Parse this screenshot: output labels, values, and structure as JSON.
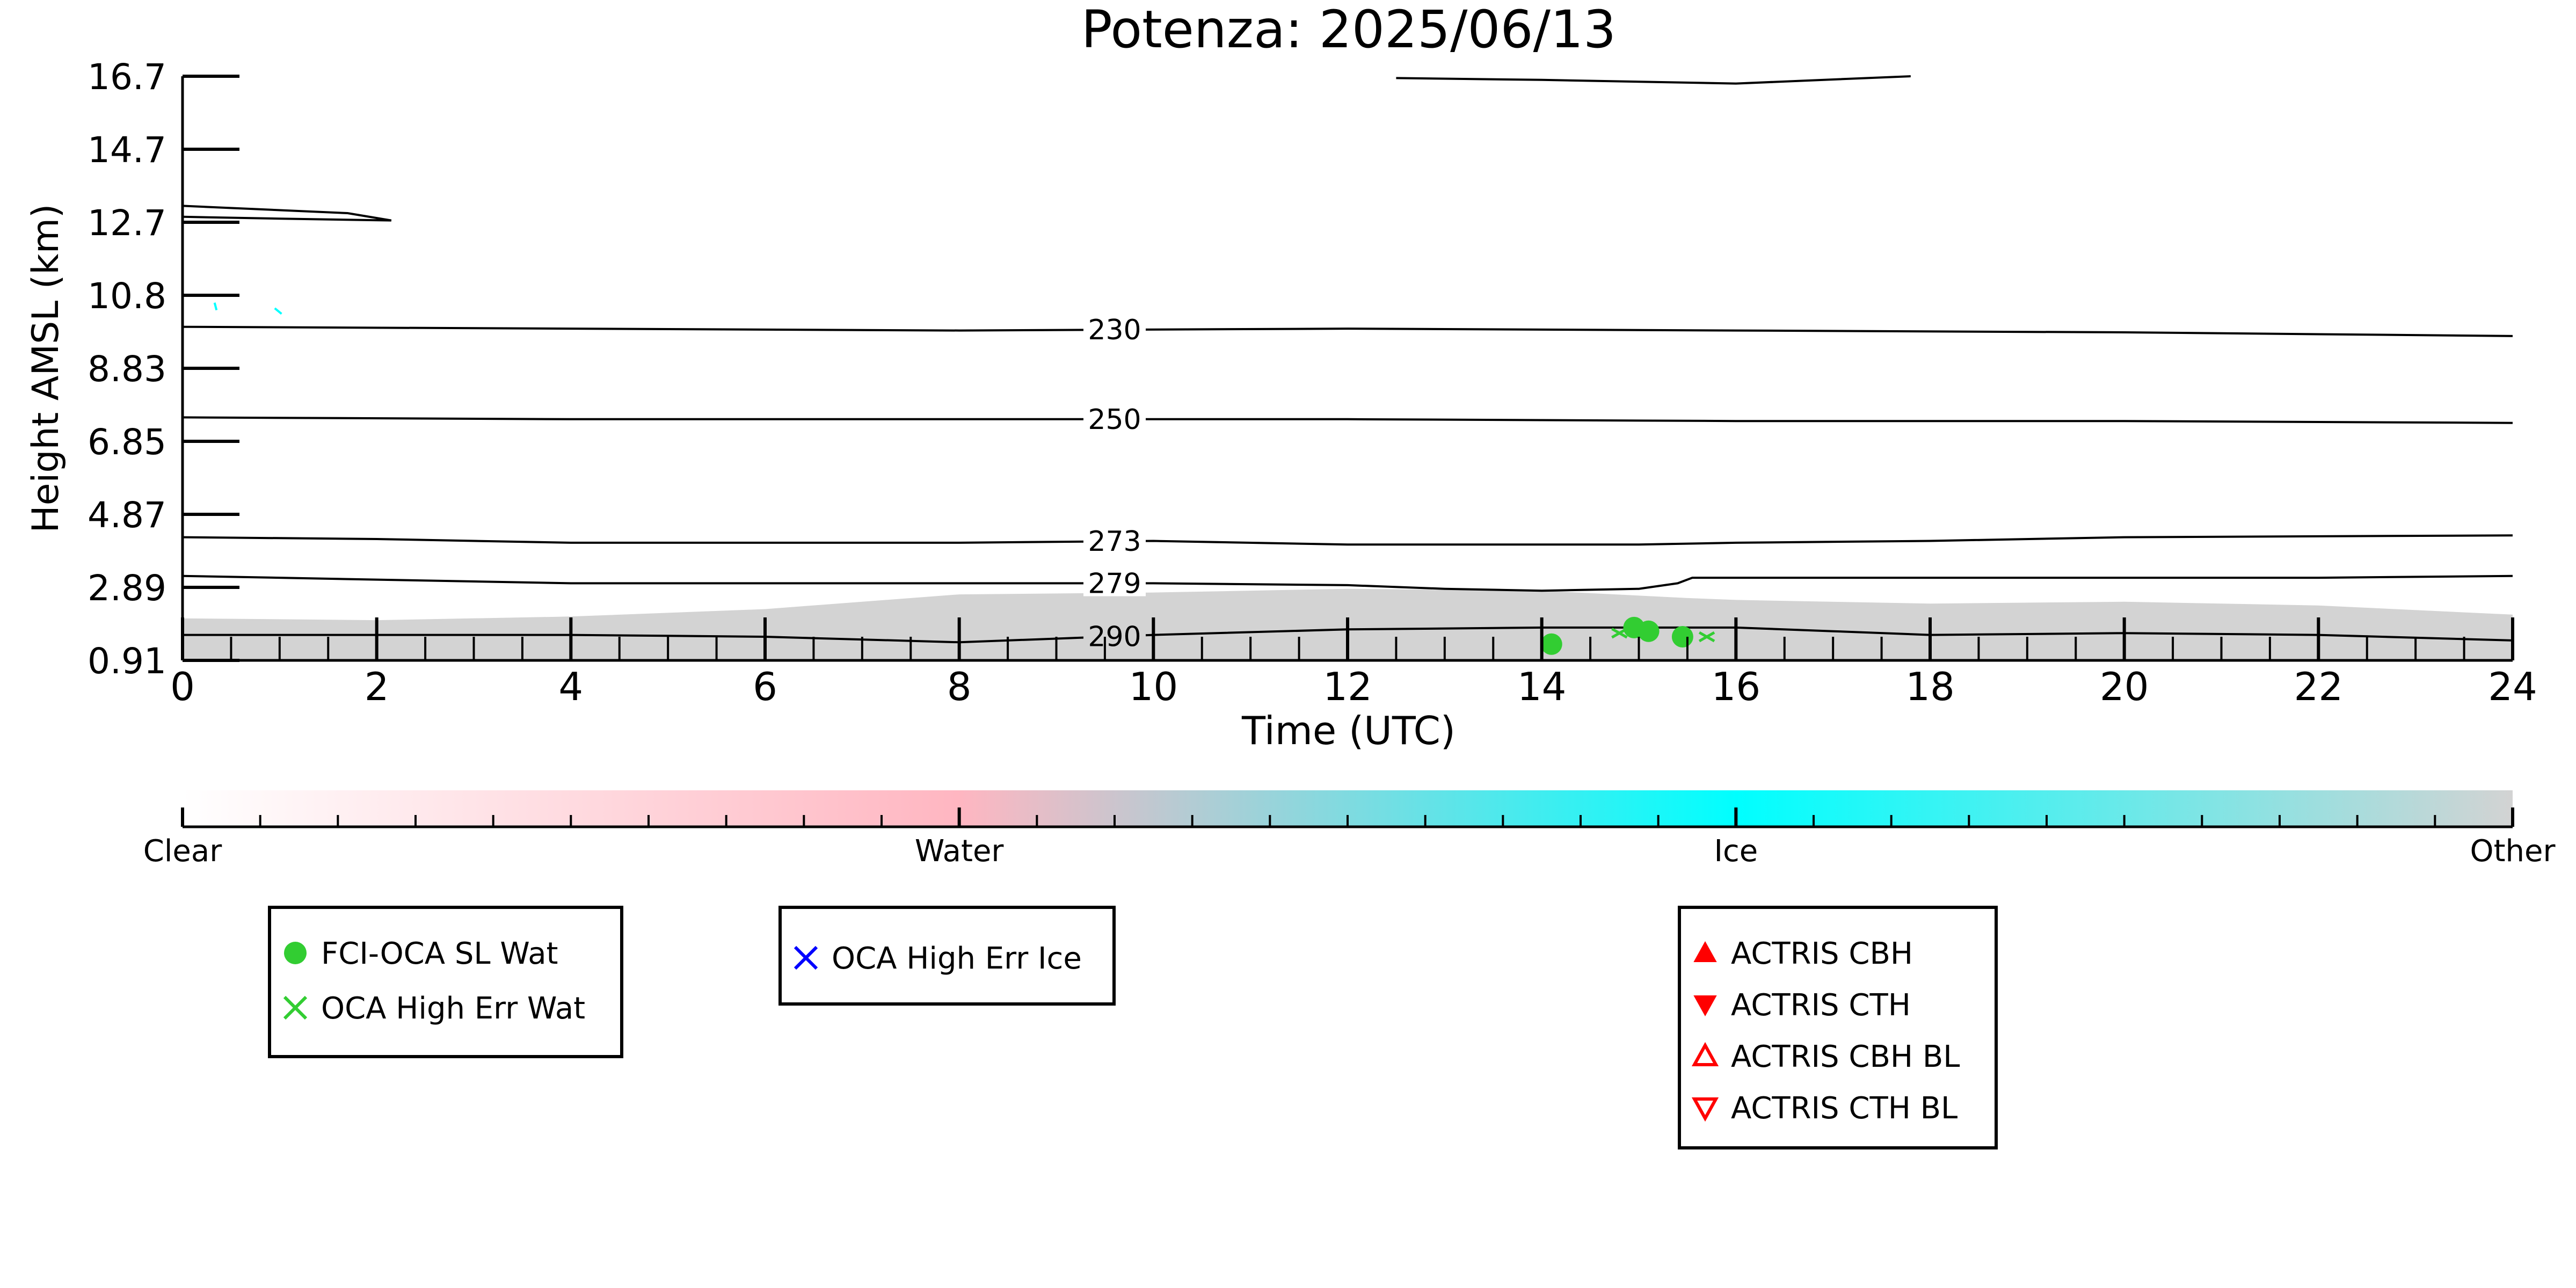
{
  "chart_data": {
    "type": "heatmap",
    "title": "Potenza: 2025/06/13",
    "xlabel": "Time (UTC)",
    "ylabel": "Height AMSL (km)",
    "xlim": [
      0,
      24
    ],
    "ylim": [
      0.91,
      16.7
    ],
    "xticks": [
      "0",
      "2",
      "4",
      "6",
      "8",
      "10",
      "12",
      "14",
      "16",
      "18",
      "20",
      "22",
      "24"
    ],
    "yticks": [
      "0.91",
      "2.89",
      "4.87",
      "6.85",
      "8.83",
      "10.8",
      "12.7",
      "14.7",
      "16.7"
    ],
    "ytick_values": [
      0.91,
      2.89,
      4.87,
      6.85,
      8.83,
      10.8,
      12.7,
      14.7,
      16.7
    ],
    "grid": false,
    "cloud_mask": {
      "class": "Other",
      "color": "#d3d3d3",
      "top_km": [
        [
          0,
          2.05
        ],
        [
          2,
          2.0
        ],
        [
          4,
          2.1
        ],
        [
          6,
          2.3
        ],
        [
          8,
          2.7
        ],
        [
          10,
          2.75
        ],
        [
          12,
          2.85
        ],
        [
          14,
          2.8
        ],
        [
          15.5,
          2.6
        ],
        [
          16,
          2.55
        ],
        [
          18,
          2.45
        ],
        [
          20,
          2.5
        ],
        [
          22,
          2.4
        ],
        [
          24,
          2.15
        ]
      ]
    },
    "ice_specks": [
      {
        "x": [
          0.33,
          0.35
        ],
        "y": [
          10.6,
          10.4
        ]
      },
      {
        "x": [
          0.95,
          1.02
        ],
        "y": [
          10.45,
          10.3
        ]
      }
    ],
    "contours": [
      {
        "label": "230",
        "label_x": 9.6,
        "points": [
          [
            0,
            9.95
          ],
          [
            4,
            9.9
          ],
          [
            8,
            9.85
          ],
          [
            12,
            9.9
          ],
          [
            16,
            9.85
          ],
          [
            20,
            9.8
          ],
          [
            24,
            9.7
          ]
        ]
      },
      {
        "label": "250",
        "label_x": 9.6,
        "points": [
          [
            0,
            7.5
          ],
          [
            4,
            7.45
          ],
          [
            8,
            7.45
          ],
          [
            12,
            7.45
          ],
          [
            16,
            7.4
          ],
          [
            20,
            7.4
          ],
          [
            24,
            7.35
          ]
        ]
      },
      {
        "label": "273",
        "label_x": 9.6,
        "points": [
          [
            0,
            4.25
          ],
          [
            2,
            4.2
          ],
          [
            4,
            4.1
          ],
          [
            6,
            4.1
          ],
          [
            8,
            4.1
          ],
          [
            10,
            4.15
          ],
          [
            12,
            4.05
          ],
          [
            15,
            4.05
          ],
          [
            16,
            4.1
          ],
          [
            18,
            4.15
          ],
          [
            20,
            4.25
          ],
          [
            24,
            4.3
          ]
        ]
      },
      {
        "label": "279",
        "label_x": 9.6,
        "points": [
          [
            0,
            3.2
          ],
          [
            2,
            3.1
          ],
          [
            4,
            3.0
          ],
          [
            6,
            3.0
          ],
          [
            8,
            3.0
          ],
          [
            10,
            3.0
          ],
          [
            12,
            2.95
          ],
          [
            13,
            2.85
          ],
          [
            14,
            2.8
          ],
          [
            15,
            2.85
          ],
          [
            15.4,
            3.0
          ],
          [
            15.55,
            3.15
          ],
          [
            16,
            3.15
          ],
          [
            18,
            3.15
          ],
          [
            20,
            3.15
          ],
          [
            22,
            3.15
          ],
          [
            24,
            3.2
          ]
        ]
      },
      {
        "label": "290",
        "label_x": 9.6,
        "points": [
          [
            0,
            1.6
          ],
          [
            2,
            1.6
          ],
          [
            4,
            1.6
          ],
          [
            6,
            1.55
          ],
          [
            8,
            1.4
          ],
          [
            10,
            1.6
          ],
          [
            12,
            1.75
          ],
          [
            14,
            1.8
          ],
          [
            16,
            1.8
          ],
          [
            17,
            1.7
          ],
          [
            18,
            1.6
          ],
          [
            20,
            1.65
          ],
          [
            22,
            1.6
          ],
          [
            24,
            1.45
          ]
        ]
      },
      {
        "label": "",
        "label_x": null,
        "points": [
          [
            12.5,
            16.65
          ],
          [
            14,
            16.6
          ],
          [
            16,
            16.5
          ],
          [
            17.8,
            16.7
          ]
        ]
      },
      {
        "label": "",
        "label_x": null,
        "points": [
          [
            0,
            13.15
          ],
          [
            1.7,
            12.95
          ],
          [
            2.15,
            12.75
          ],
          [
            1.0,
            12.8
          ],
          [
            0,
            12.85
          ]
        ]
      }
    ],
    "markers": {
      "fci_oca_sl_wat": {
        "color": "#32cd32",
        "points": [
          [
            14.1,
            1.35
          ],
          [
            14.95,
            1.8
          ],
          [
            15.1,
            1.7
          ],
          [
            15.45,
            1.55
          ]
        ]
      },
      "oca_high_err_wat": {
        "color": "#32cd32",
        "points": [
          [
            14.8,
            1.65
          ],
          [
            15.7,
            1.55
          ]
        ]
      }
    },
    "colorbar": {
      "labels": [
        "Clear",
        "Water",
        "Ice",
        "Other"
      ],
      "stops": [
        {
          "at": 0.0,
          "color": "#ffffff"
        },
        {
          "at": 0.333,
          "color": "#ffb6c1"
        },
        {
          "at": 0.667,
          "color": "#00ffff"
        },
        {
          "at": 1.0,
          "color": "#d3d3d3"
        }
      ]
    },
    "legends": [
      {
        "entries": [
          {
            "label": "FCI-OCA SL Wat",
            "marker": "circle",
            "color": "#32cd32"
          },
          {
            "label": "OCA High Err Wat",
            "marker": "x",
            "color": "#32cd32"
          }
        ]
      },
      {
        "entries": [
          {
            "label": "OCA High Err Ice",
            "marker": "x",
            "color": "#0000ff"
          }
        ]
      },
      {
        "entries": [
          {
            "label": "ACTRIS CBH",
            "marker": "triangle-up",
            "color": "#ff0000"
          },
          {
            "label": "ACTRIS CTH",
            "marker": "triangle-down",
            "color": "#ff0000"
          },
          {
            "label": "ACTRIS CBH BL",
            "marker": "triangle-up-open",
            "color": "#ff0000"
          },
          {
            "label": "ACTRIS CTH BL",
            "marker": "triangle-down-open",
            "color": "#ff0000"
          }
        ]
      }
    ]
  }
}
